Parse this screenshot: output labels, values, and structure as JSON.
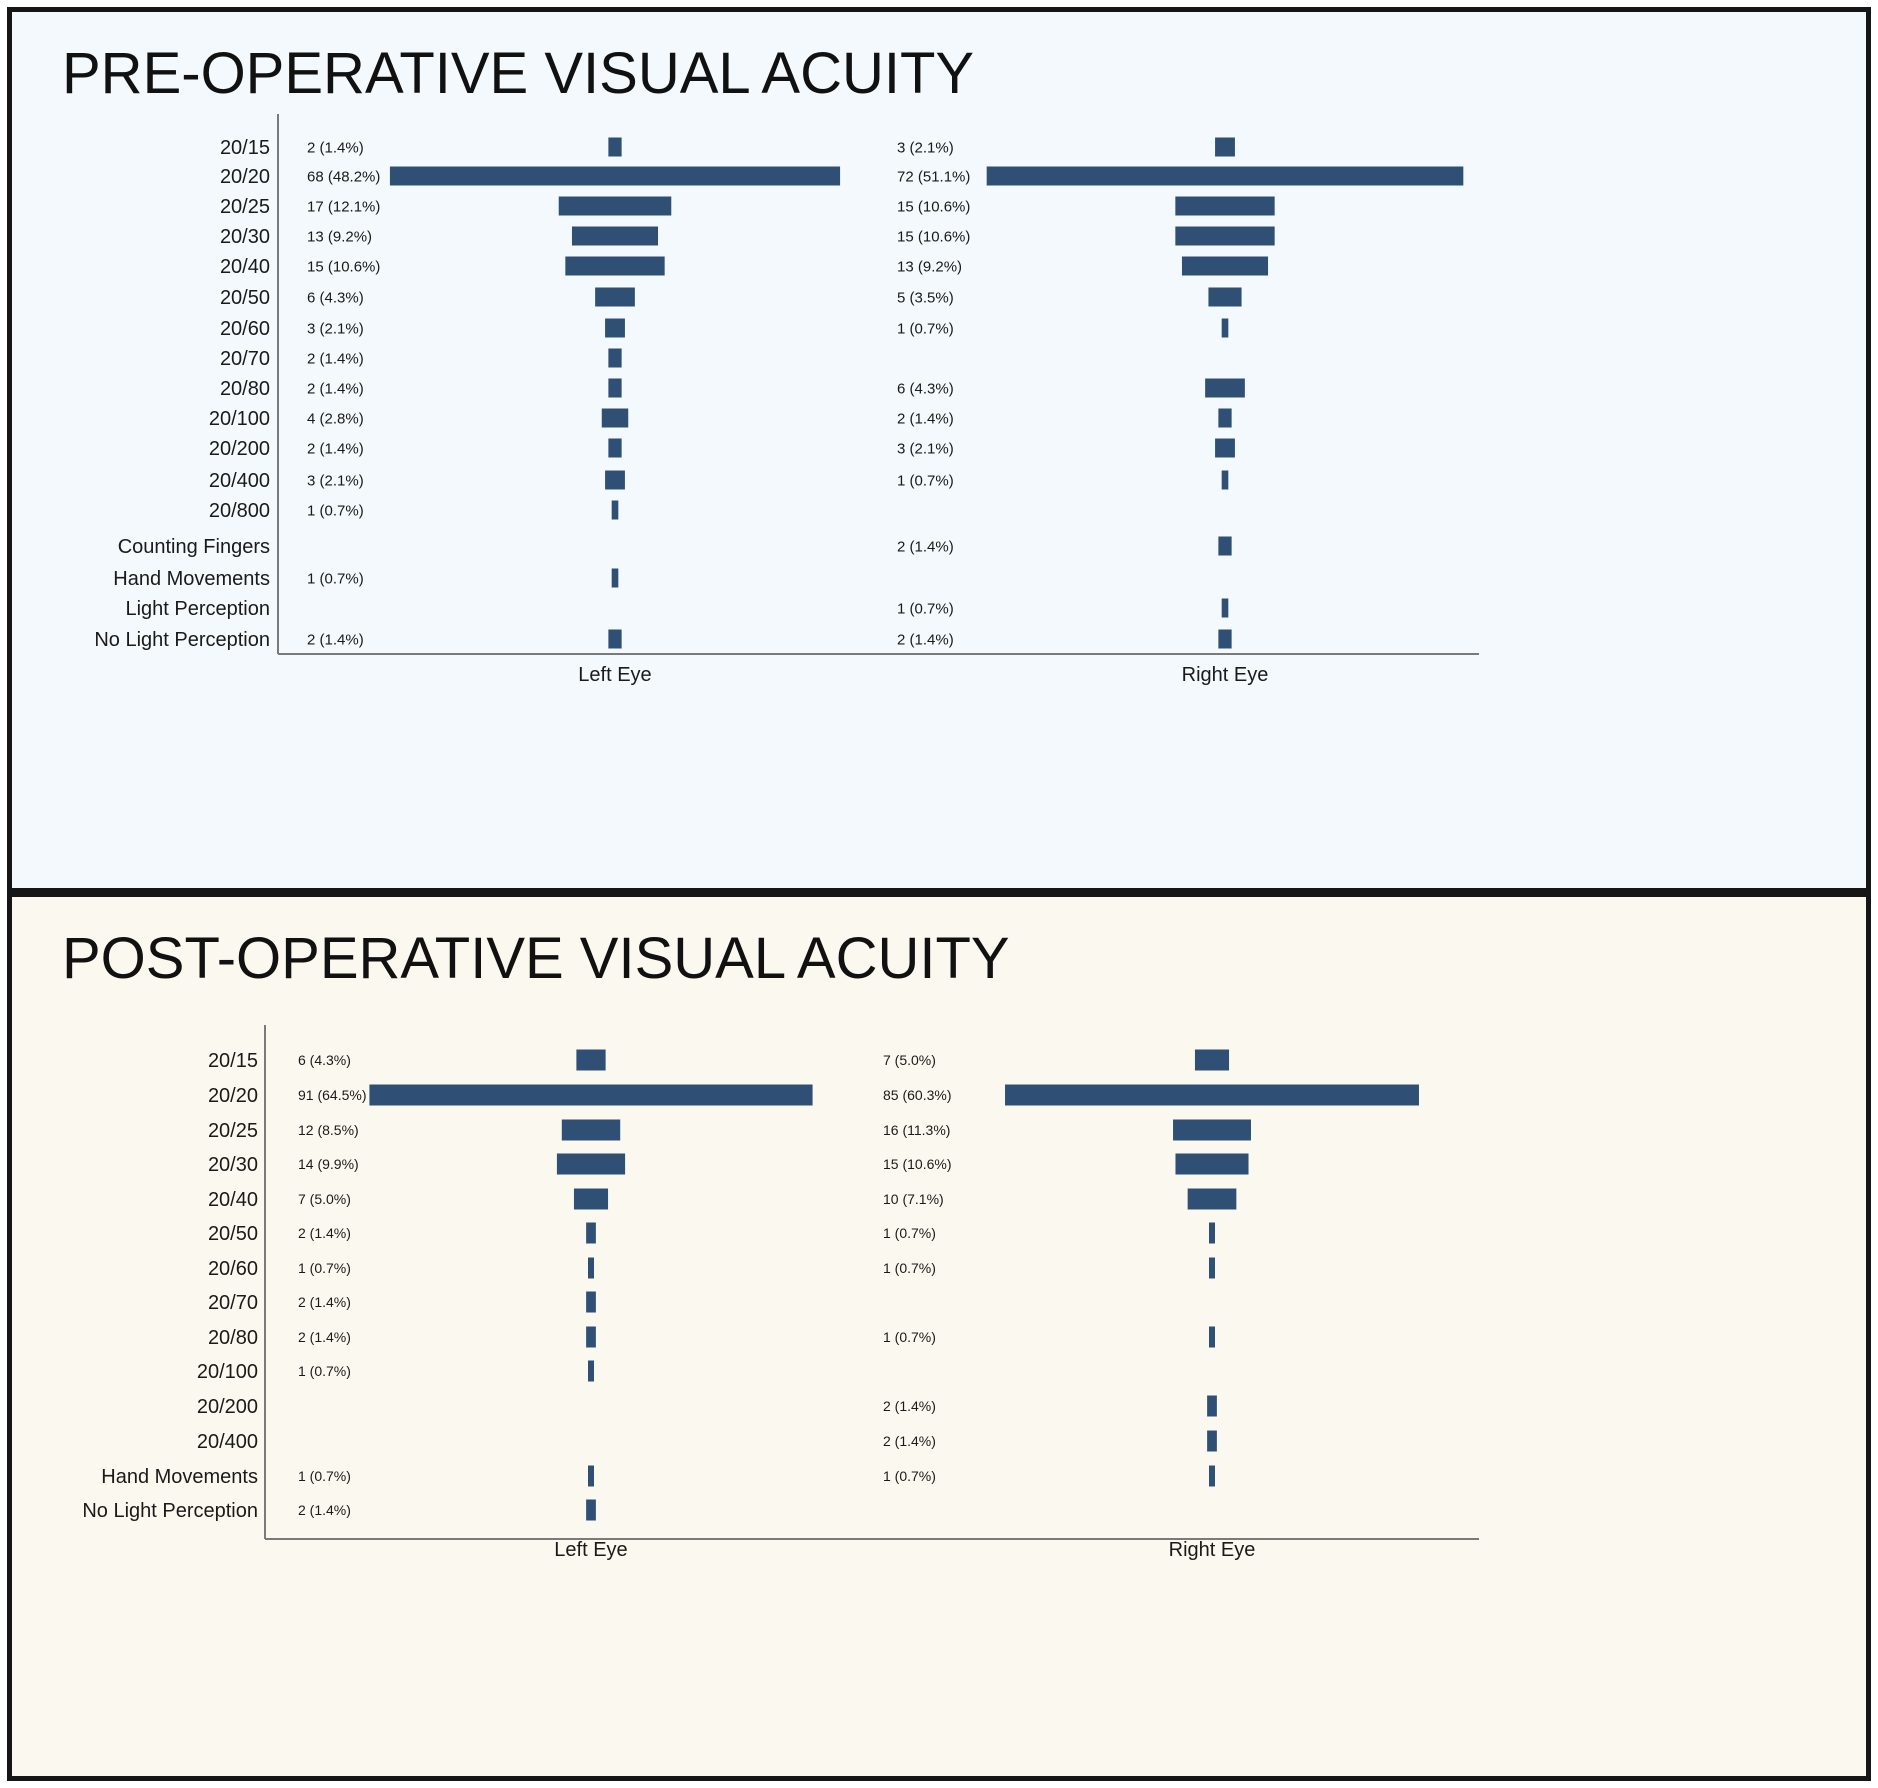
{
  "colors": {
    "bar": "#2f4f74",
    "axis": "#7a7a7a",
    "pre_background": "#f3f9fc",
    "post_background": "#fbf9ef"
  },
  "chart_data": [
    {
      "type": "bar",
      "orientation": "horizontal-centered",
      "title": "PRE-OPERATIVE VISUAL ACUITY",
      "categories": [
        "20/15",
        "20/20",
        "20/25",
        "20/30",
        "20/40",
        "20/50",
        "20/60",
        "20/70",
        "20/80",
        "20/100",
        "20/200",
        "20/400",
        "20/800",
        "Counting Fingers",
        "Hand Movements",
        "Light Perception",
        "No Light Perception"
      ],
      "series": [
        {
          "name": "Left Eye",
          "values": [
            2,
            68,
            17,
            13,
            15,
            6,
            3,
            2,
            2,
            4,
            2,
            3,
            1,
            null,
            1,
            null,
            2
          ],
          "labels": [
            "2 (1.4%)",
            "68 (48.2%)",
            "17 (12.1%)",
            "13 (9.2%)",
            "15 (10.6%)",
            "6 (4.3%)",
            "3 (2.1%)",
            "2 (1.4%)",
            "2 (1.4%)",
            "4 (2.8%)",
            "2 (1.4%)",
            "3 (2.1%)",
            "1 (0.7%)",
            null,
            "1 (0.7%)",
            null,
            "2 (1.4%)"
          ]
        },
        {
          "name": "Right Eye",
          "values": [
            3,
            72,
            15,
            15,
            13,
            5,
            1,
            null,
            6,
            2,
            3,
            1,
            null,
            2,
            null,
            1,
            2
          ],
          "labels": [
            "3 (2.1%)",
            "72 (51.1%)",
            "15 (10.6%)",
            "15 (10.6%)",
            "13 (9.2%)",
            "5 (3.5%)",
            "1 (0.7%)",
            null,
            "6 (4.3%)",
            "2 (1.4%)",
            "3 (2.1%)",
            "1 (0.7%)",
            null,
            "2 (1.4%)",
            null,
            "1 (0.7%)",
            "2 (1.4%)"
          ]
        }
      ],
      "legend": "none",
      "grid": false
    },
    {
      "type": "bar",
      "orientation": "horizontal-centered",
      "title": "POST-OPERATIVE VISUAL ACUITY",
      "categories": [
        "20/15",
        "20/20",
        "20/25",
        "20/30",
        "20/40",
        "20/50",
        "20/60",
        "20/70",
        "20/80",
        "20/100",
        "20/200",
        "20/400",
        "Hand Movements",
        "No Light Perception"
      ],
      "series": [
        {
          "name": "Left Eye",
          "values": [
            6,
            91,
            12,
            14,
            7,
            2,
            1,
            2,
            2,
            1,
            null,
            null,
            1,
            2
          ],
          "labels": [
            "6 (4.3%)",
            "91 (64.5%)",
            "12 (8.5%)",
            "14 (9.9%)",
            "7 (5.0%)",
            "2 (1.4%)",
            "1 (0.7%)",
            "2 (1.4%)",
            "2 (1.4%)",
            "1 (0.7%)",
            null,
            null,
            "1 (0.7%)",
            "2 (1.4%)"
          ]
        },
        {
          "name": "Right Eye",
          "values": [
            7,
            85,
            16,
            15,
            10,
            1,
            1,
            null,
            1,
            null,
            2,
            2,
            1,
            null
          ],
          "labels": [
            "7 (5.0%)",
            "85 (60.3%)",
            "16 (11.3%)",
            "15 (10.6%)",
            "10 (7.1%)",
            "1 (0.7%)",
            "1 (0.7%)",
            null,
            "1 (0.7%)",
            null,
            "2 (1.4%)",
            "2 (1.4%)",
            "1 (0.7%)",
            null
          ]
        }
      ],
      "legend": "none",
      "grid": false
    }
  ]
}
